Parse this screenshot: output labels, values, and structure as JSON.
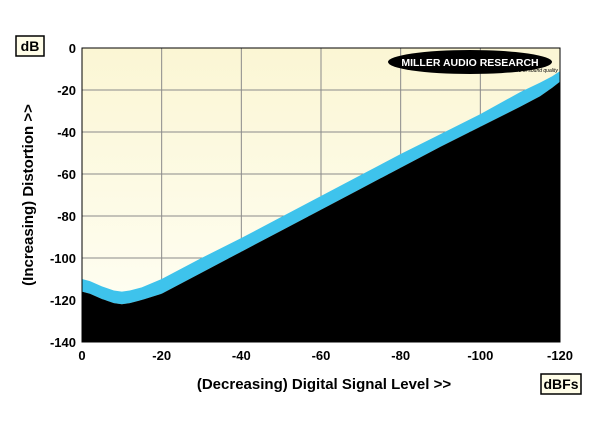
{
  "chart_data": {
    "type": "area",
    "xlabel": "(Decreasing) Digital Signal Level >>",
    "ylabel": "(Increasing) Distortion >>",
    "x_unit": "dBFs",
    "y_unit": "dB",
    "xlim": [
      0,
      -120
    ],
    "ylim": [
      -140,
      0
    ],
    "xticks": [
      0,
      -20,
      -40,
      -60,
      -80,
      -100,
      -120
    ],
    "yticks": [
      0,
      -20,
      -40,
      -60,
      -80,
      -100,
      -120,
      -140
    ],
    "grid": true,
    "logo": {
      "name": "MILLER AUDIO RESEARCH",
      "tagline": "Getting the measure of sound quality"
    },
    "series": [
      {
        "x": [
          0,
          -2,
          -5,
          -8,
          -10,
          -12,
          -15,
          -20,
          -25,
          -30,
          -40,
          -50,
          -60,
          -70,
          -80,
          -90,
          -100,
          -110,
          -115,
          -118,
          -120
        ],
        "upper": [
          -110,
          -111,
          -113.5,
          -115.5,
          -116,
          -115.5,
          -114,
          -110,
          -105,
          -100,
          -90.5,
          -80.5,
          -70.5,
          -60.5,
          -50.5,
          -41,
          -31.5,
          -21,
          -16.5,
          -13.5,
          -11
        ],
        "lower": [
          -116,
          -117,
          -119.5,
          -121.5,
          -122,
          -121.5,
          -120,
          -117,
          -112,
          -107,
          -97,
          -87,
          -77,
          -67,
          -57,
          -47,
          -37.5,
          -28,
          -23,
          -19,
          -16
        ]
      }
    ],
    "colors": {
      "background": "#fffde8",
      "band": "#3ec3ec",
      "fill_below": "#000000",
      "grid": "#8a8a8a"
    }
  }
}
